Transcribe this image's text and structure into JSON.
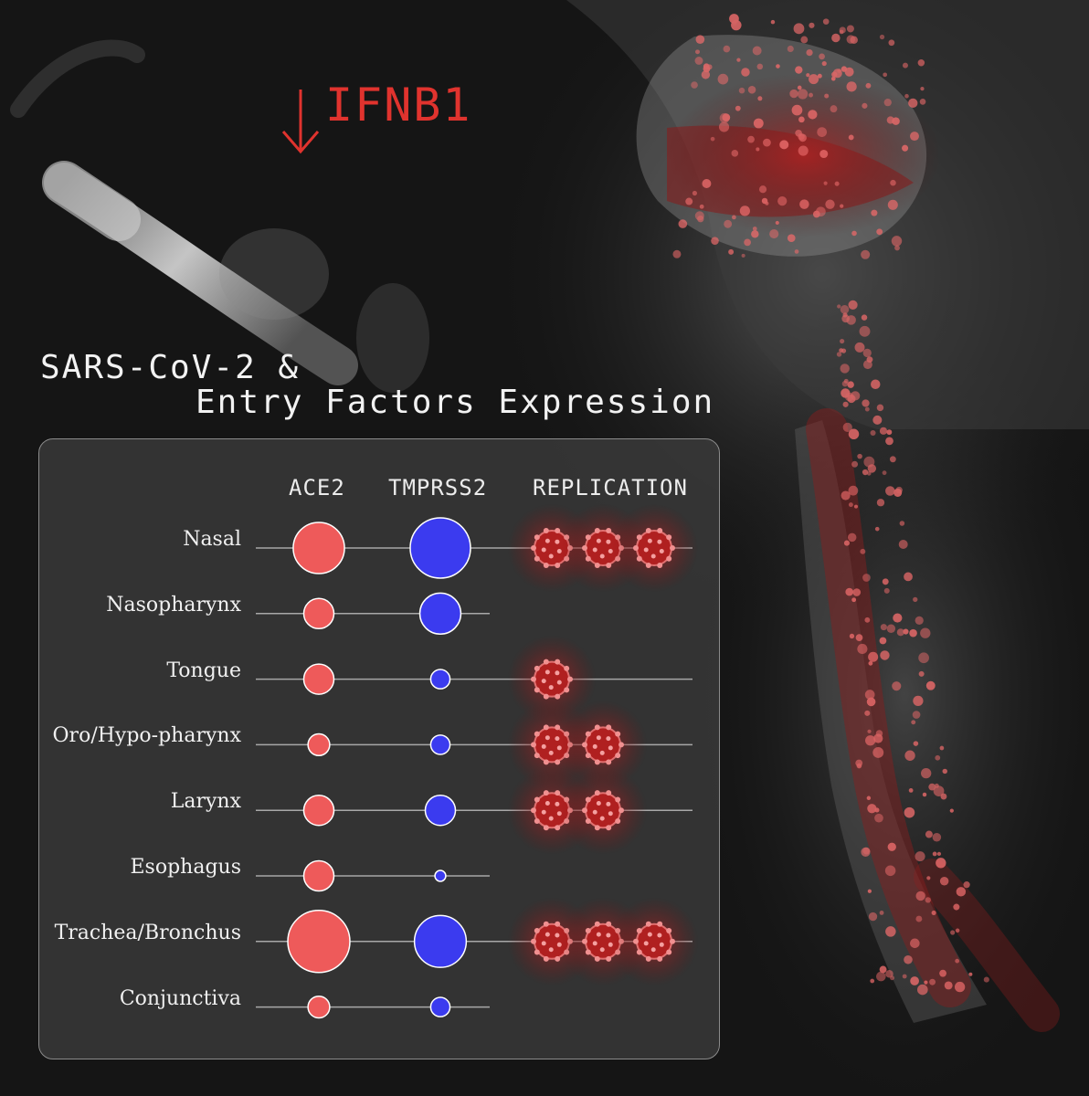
{
  "title_line1": "SARS-CoV-2 &",
  "title_line2": "Entry Factors Expression",
  "ifnb_label": "IFNB1",
  "ifnb_arrow_icon": "down-arrow-icon",
  "colors": {
    "ace2": "#ee5a5a",
    "tmprss2": "#3b3bef",
    "replication": "#b02020",
    "ifnb": "#e0332e"
  },
  "chart_data": {
    "type": "table",
    "columns": [
      "ACE2",
      "TMPRSS2",
      "REPLICATION"
    ],
    "rows": [
      {
        "label": "Nasal",
        "ace2": 0.85,
        "tmprss2": 1.0,
        "replication": 3,
        "row_line": "long"
      },
      {
        "label": "Nasopharynx",
        "ace2": 0.5,
        "tmprss2": 0.68,
        "replication": 0,
        "row_line": "short"
      },
      {
        "label": "Tongue",
        "ace2": 0.5,
        "tmprss2": 0.32,
        "replication": 1,
        "row_line": "long"
      },
      {
        "label": "Oro/Hypo-pharynx",
        "ace2": 0.36,
        "tmprss2": 0.32,
        "replication": 2,
        "row_line": "long"
      },
      {
        "label": "Larynx",
        "ace2": 0.5,
        "tmprss2": 0.5,
        "replication": 2,
        "row_line": "long"
      },
      {
        "label": "Esophagus",
        "ace2": 0.5,
        "tmprss2": 0.18,
        "replication": 0,
        "row_line": "short"
      },
      {
        "label": "Trachea/Bronchus",
        "ace2": 1.03,
        "tmprss2": 0.86,
        "replication": 3,
        "row_line": "long"
      },
      {
        "label": "Conjunctiva",
        "ace2": 0.36,
        "tmprss2": 0.32,
        "replication": 0,
        "row_line": "short"
      }
    ]
  }
}
